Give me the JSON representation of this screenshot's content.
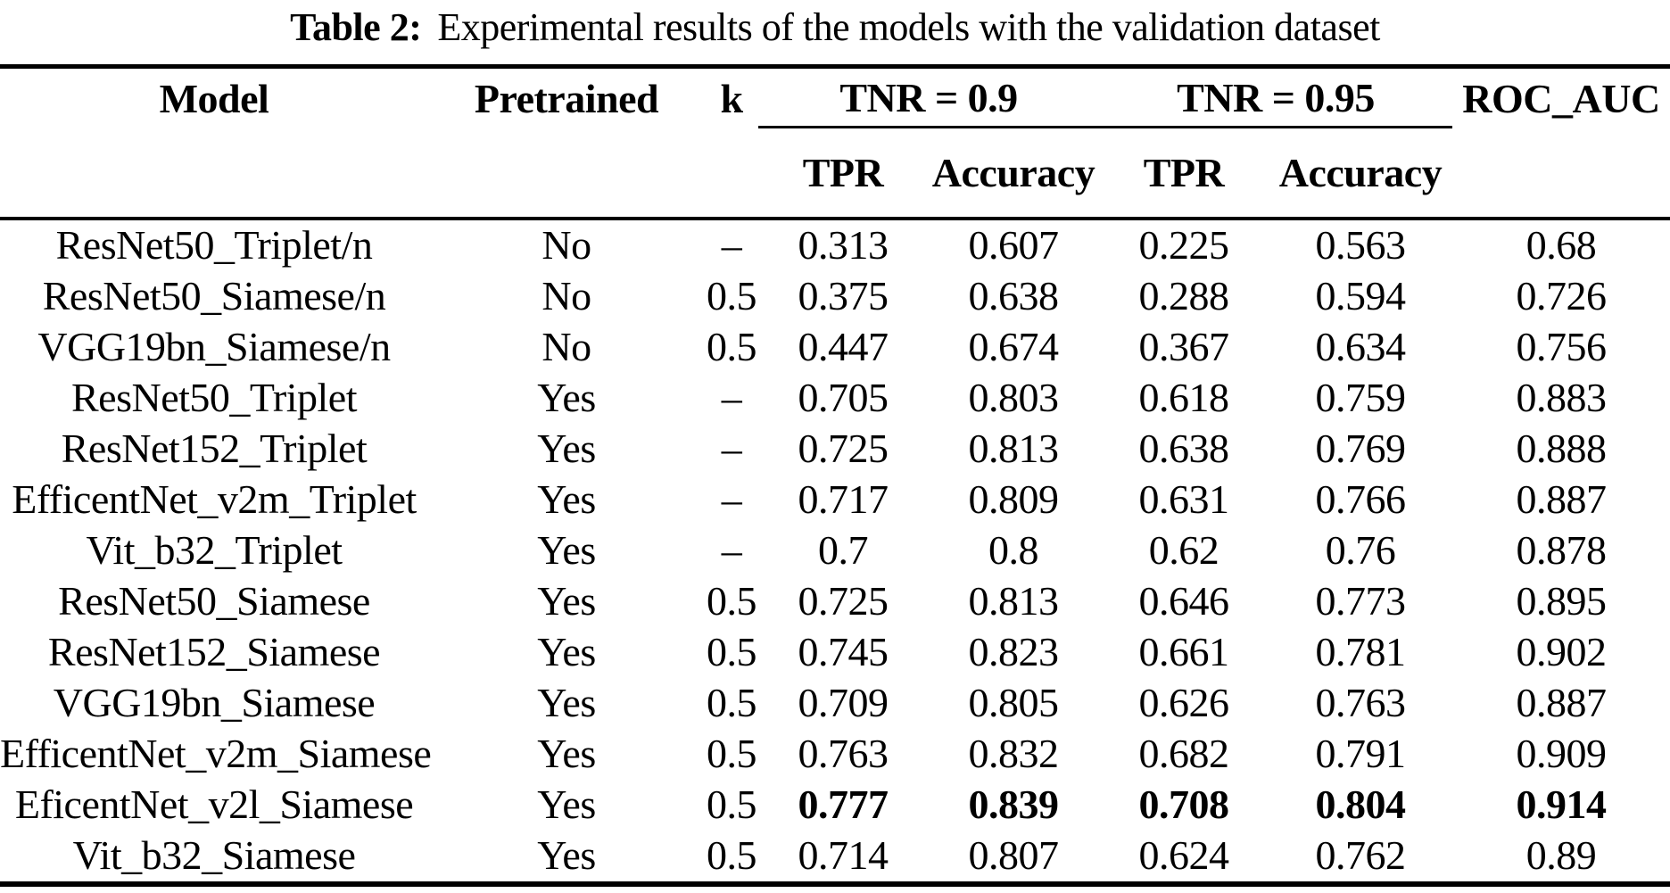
{
  "title": {
    "label": "Table 2:",
    "text": "Experimental results of the models with the validation dataset"
  },
  "colors": {
    "background": "#ffffff",
    "text": "#000000",
    "rule": "#000000"
  },
  "table": {
    "columns": {
      "model": "Model",
      "pretrained": "Pretrained",
      "k": "k",
      "group1": "TNR = 0.9",
      "group2": "TNR = 0.95",
      "roc_auc": "ROC_AUC",
      "sub": [
        "TPR",
        "Accuracy",
        "TPR",
        "Accuracy"
      ]
    },
    "rows": [
      {
        "model": "ResNet50_Triplet/n",
        "pretrained": "No",
        "k": "–",
        "tpr_09": "0.313",
        "acc_09": "0.607",
        "tpr_095": "0.225",
        "acc_095": "0.563",
        "roc_auc": "0.68",
        "bold_values": false
      },
      {
        "model": "ResNet50_Siamese/n",
        "pretrained": "No",
        "k": "0.5",
        "tpr_09": "0.375",
        "acc_09": "0.638",
        "tpr_095": "0.288",
        "acc_095": "0.594",
        "roc_auc": "0.726",
        "bold_values": false
      },
      {
        "model": "VGG19bn_Siamese/n",
        "pretrained": "No",
        "k": "0.5",
        "tpr_09": "0.447",
        "acc_09": "0.674",
        "tpr_095": "0.367",
        "acc_095": "0.634",
        "roc_auc": "0.756",
        "bold_values": false
      },
      {
        "model": "ResNet50_Triplet",
        "pretrained": "Yes",
        "k": "–",
        "tpr_09": "0.705",
        "acc_09": "0.803",
        "tpr_095": "0.618",
        "acc_095": "0.759",
        "roc_auc": "0.883",
        "bold_values": false
      },
      {
        "model": "ResNet152_Triplet",
        "pretrained": "Yes",
        "k": "–",
        "tpr_09": "0.725",
        "acc_09": "0.813",
        "tpr_095": "0.638",
        "acc_095": "0.769",
        "roc_auc": "0.888",
        "bold_values": false
      },
      {
        "model": "EfficentNet_v2m_Triplet",
        "pretrained": "Yes",
        "k": "–",
        "tpr_09": "0.717",
        "acc_09": "0.809",
        "tpr_095": "0.631",
        "acc_095": "0.766",
        "roc_auc": "0.887",
        "bold_values": false
      },
      {
        "model": "Vit_b32_Triplet",
        "pretrained": "Yes",
        "k": "–",
        "tpr_09": "0.7",
        "acc_09": "0.8",
        "tpr_095": "0.62",
        "acc_095": "0.76",
        "roc_auc": "0.878",
        "bold_values": false
      },
      {
        "model": "ResNet50_Siamese",
        "pretrained": "Yes",
        "k": "0.5",
        "tpr_09": "0.725",
        "acc_09": "0.813",
        "tpr_095": "0.646",
        "acc_095": "0.773",
        "roc_auc": "0.895",
        "bold_values": false
      },
      {
        "model": "ResNet152_Siamese",
        "pretrained": "Yes",
        "k": "0.5",
        "tpr_09": "0.745",
        "acc_09": "0.823",
        "tpr_095": "0.661",
        "acc_095": "0.781",
        "roc_auc": "0.902",
        "bold_values": false
      },
      {
        "model": "VGG19bn_Siamese",
        "pretrained": "Yes",
        "k": "0.5",
        "tpr_09": "0.709",
        "acc_09": "0.805",
        "tpr_095": "0.626",
        "acc_095": "0.763",
        "roc_auc": "0.887",
        "bold_values": false
      },
      {
        "model": "EfficentNet_v2m_Siamese",
        "pretrained": "Yes",
        "k": "0.5",
        "tpr_09": "0.763",
        "acc_09": "0.832",
        "tpr_095": "0.682",
        "acc_095": "0.791",
        "roc_auc": "0.909",
        "bold_values": false
      },
      {
        "model": "EficentNet_v2l_Siamese",
        "pretrained": "Yes",
        "k": "0.5",
        "tpr_09": "0.777",
        "acc_09": "0.839",
        "tpr_095": "0.708",
        "acc_095": "0.804",
        "roc_auc": "0.914",
        "bold_values": true
      },
      {
        "model": "Vit_b32_Siamese",
        "pretrained": "Yes",
        "k": "0.5",
        "tpr_09": "0.714",
        "acc_09": "0.807",
        "tpr_095": "0.624",
        "acc_095": "0.762",
        "roc_auc": "0.89",
        "bold_values": false
      }
    ]
  }
}
